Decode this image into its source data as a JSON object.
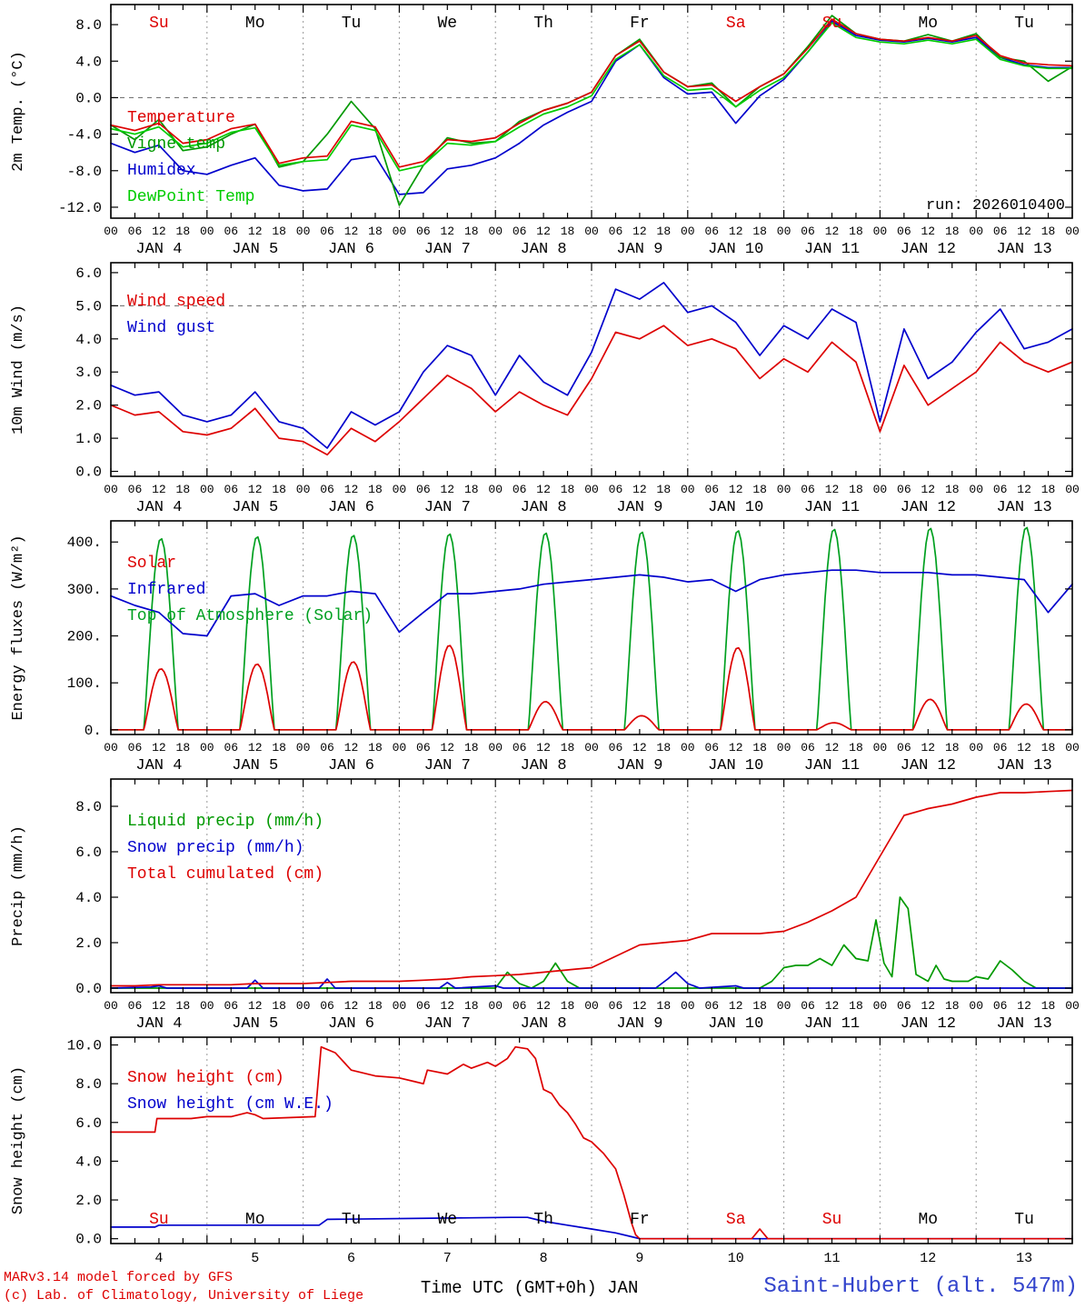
{
  "meta": {
    "credit1": "MARv3.14 model forced by GFS",
    "credit2": "(c) Lab. of Climatology, University of Liege",
    "xlabel": "Time UTC (GMT+0h) JAN",
    "station": "Saint-Hubert (alt. 547m)",
    "run_label": "run: 2026010400"
  },
  "colors": {
    "red": "#dd0000",
    "blue": "#0000cc",
    "green_dark": "#009900",
    "green_bright": "#00cc00",
    "toa_green": "#00a020",
    "grid": "#999999",
    "frame": "#000000",
    "weekend": "#dd0000",
    "station_blue": "#3344cc"
  },
  "x_axis": {
    "span_hours": 240,
    "tick_step_hours": 6,
    "tick_label_cycle": [
      "00",
      "06",
      "12",
      "18"
    ],
    "day_labels": [
      "JAN 4",
      "JAN 5",
      "JAN 6",
      "JAN 7",
      "JAN 8",
      "JAN 9",
      "JAN 10",
      "JAN 11",
      "JAN 12",
      "JAN 13"
    ],
    "day_names": [
      "Su",
      "Mo",
      "Tu",
      "We",
      "Th",
      "Fr",
      "Sa",
      "Su",
      "Mo",
      "Tu"
    ],
    "day_numbers": [
      "4",
      "5",
      "6",
      "7",
      "8",
      "9",
      "10",
      "11",
      "12",
      "13"
    ]
  },
  "chart_data": [
    {
      "type": "line",
      "ylabel": "2m Temp. (°C)",
      "ylim": [
        -13.2,
        10.2
      ],
      "yticks": [
        -12,
        -8,
        -4,
        0,
        4,
        8
      ],
      "ytick_labels": [
        "-12.0",
        "-8.0",
        "-4.0",
        "0.0",
        "4.0",
        "8.0"
      ],
      "hline": 0,
      "annotation": "run: 2026010400",
      "x_step_h": 6,
      "legend": [
        {
          "label": "Temperature",
          "color": "#dd0000"
        },
        {
          "label": "Vigne temp",
          "color": "#009900"
        },
        {
          "label": "Humidex",
          "color": "#0000cc"
        },
        {
          "label": "DewPoint Temp",
          "color": "#00cc00"
        }
      ],
      "series": [
        {
          "name": "Humidex",
          "color": "#0000cc",
          "values": [
            -5.0,
            -6.0,
            -5.2,
            -8.0,
            -8.4,
            -7.4,
            -6.6,
            -9.6,
            -10.2,
            -10.0,
            -6.8,
            -6.4,
            -10.6,
            -10.4,
            -7.8,
            -7.4,
            -6.6,
            -5.0,
            -3.0,
            -1.6,
            -0.4,
            4.0,
            5.8,
            2.2,
            0.4,
            0.6,
            -2.8,
            0.2,
            2.0,
            5.0,
            8.4,
            6.8,
            6.3,
            6.1,
            6.5,
            6.1,
            6.6,
            4.4,
            3.6,
            3.3,
            3.3
          ]
        },
        {
          "name": "Vigne temp",
          "color": "#009900",
          "values": [
            -3.0,
            -4.6,
            -2.4,
            -5.8,
            -5.4,
            -4.0,
            -2.9,
            -7.6,
            -7.0,
            -4.0,
            -0.4,
            -3.4,
            -11.8,
            -7.4,
            -4.4,
            -5.0,
            -4.8,
            -2.6,
            -1.4,
            -0.6,
            0.6,
            4.6,
            6.4,
            2.8,
            1.2,
            1.6,
            -1.0,
            1.2,
            2.6,
            5.6,
            9.0,
            7.0,
            6.4,
            6.2,
            6.9,
            6.2,
            7.0,
            4.4,
            4.0,
            1.8,
            3.4
          ]
        },
        {
          "name": "DewPoint Temp",
          "color": "#00cc00",
          "values": [
            -3.4,
            -4.0,
            -3.2,
            -5.4,
            -5.0,
            -3.8,
            -3.3,
            -7.4,
            -7.0,
            -6.8,
            -3.0,
            -3.6,
            -8.0,
            -7.4,
            -5.0,
            -5.2,
            -4.8,
            -3.2,
            -1.8,
            -1.0,
            0.2,
            4.2,
            5.8,
            2.4,
            0.8,
            1.0,
            -1.0,
            0.8,
            2.2,
            5.0,
            8.2,
            6.6,
            6.1,
            5.9,
            6.3,
            5.9,
            6.4,
            4.2,
            3.5,
            3.2,
            3.2
          ]
        },
        {
          "name": "Temperature",
          "color": "#dd0000",
          "values": [
            -3.0,
            -3.6,
            -2.8,
            -5.0,
            -4.6,
            -3.4,
            -2.9,
            -7.2,
            -6.6,
            -6.4,
            -2.6,
            -3.2,
            -7.6,
            -7.0,
            -4.6,
            -4.8,
            -4.4,
            -2.8,
            -1.4,
            -0.6,
            0.6,
            4.6,
            6.2,
            2.8,
            1.2,
            1.4,
            -0.4,
            1.2,
            2.6,
            5.4,
            8.6,
            7.0,
            6.4,
            6.2,
            6.6,
            6.2,
            6.8,
            4.6,
            3.8,
            3.6,
            3.5
          ]
        }
      ]
    },
    {
      "type": "line",
      "ylabel": "10m Wind (m/s)",
      "ylim": [
        -0.15,
        6.3
      ],
      "yticks": [
        0,
        1,
        2,
        3,
        4,
        5,
        6
      ],
      "ytick_labels": [
        "0.0",
        "1.0",
        "2.0",
        "3.0",
        "4.0",
        "5.0",
        "6.0"
      ],
      "hline": 5,
      "x_step_h": 6,
      "legend": [
        {
          "label": "Wind speed",
          "color": "#dd0000"
        },
        {
          "label": "Wind gust",
          "color": "#0000cc"
        }
      ],
      "series": [
        {
          "name": "Wind gust",
          "color": "#0000cc",
          "values": [
            2.6,
            2.3,
            2.4,
            1.7,
            1.5,
            1.7,
            2.4,
            1.5,
            1.3,
            0.7,
            1.8,
            1.4,
            1.8,
            3.0,
            3.8,
            3.5,
            2.3,
            3.5,
            2.7,
            2.3,
            3.6,
            5.5,
            5.2,
            5.7,
            4.8,
            5.0,
            4.5,
            3.5,
            4.4,
            4.0,
            4.9,
            4.5,
            1.5,
            4.3,
            2.8,
            3.3,
            4.2,
            4.9,
            3.7,
            3.9,
            4.3
          ]
        },
        {
          "name": "Wind speed",
          "color": "#dd0000",
          "values": [
            2.0,
            1.7,
            1.8,
            1.2,
            1.1,
            1.3,
            1.9,
            1.0,
            0.9,
            0.5,
            1.3,
            0.9,
            1.5,
            2.2,
            2.9,
            2.5,
            1.8,
            2.4,
            2.0,
            1.7,
            2.8,
            4.2,
            4.0,
            4.4,
            3.8,
            4.0,
            3.7,
            2.8,
            3.4,
            3.0,
            3.9,
            3.3,
            1.2,
            3.2,
            2.0,
            2.5,
            3.0,
            3.9,
            3.3,
            3.0,
            3.3
          ]
        }
      ]
    },
    {
      "type": "line",
      "ylabel": "Energy fluxes (W/m²)",
      "ylim": [
        -10,
        445
      ],
      "yticks": [
        0,
        100,
        200,
        300,
        400
      ],
      "ytick_labels": [
        "0.",
        "100.",
        "200.",
        "300.",
        "400."
      ],
      "x_step_h": 6,
      "legend": [
        {
          "label": "Solar",
          "color": "#dd0000"
        },
        {
          "label": "Infrared",
          "color": "#0000cc"
        },
        {
          "label": "Top of Atmosphere (Solar)",
          "color": "#00a020"
        }
      ],
      "series": [
        {
          "name": "Top of Atmosphere (Solar)",
          "color": "#00a020",
          "daily_peaks": [
            408,
            412,
            415,
            418,
            420,
            422,
            425,
            428,
            430,
            432
          ]
        },
        {
          "name": "Infrared",
          "color": "#0000cc",
          "values": [
            285,
            265,
            250,
            205,
            200,
            285,
            290,
            265,
            285,
            285,
            295,
            290,
            208,
            250,
            290,
            290,
            295,
            300,
            310,
            315,
            320,
            325,
            330,
            325,
            315,
            320,
            295,
            320,
            330,
            335,
            340,
            340,
            335,
            335,
            335,
            330,
            330,
            325,
            320,
            250,
            310
          ]
        },
        {
          "name": "Solar",
          "color": "#dd0000",
          "daily_peaks": [
            130,
            140,
            145,
            180,
            60,
            30,
            175,
            15,
            65,
            55
          ]
        }
      ]
    },
    {
      "type": "line",
      "ylabel": "Precip (mm/h)",
      "ylim": [
        -0.2,
        9.2
      ],
      "yticks": [
        0,
        2,
        4,
        6,
        8
      ],
      "ytick_labels": [
        "0.0",
        "2.0",
        "4.0",
        "6.0",
        "8.0"
      ],
      "x_step_h": 6,
      "legend": [
        {
          "label": "Liquid precip (mm/h)",
          "color": "#009900"
        },
        {
          "label": "Snow precip (mm/h)",
          "color": "#0000cc"
        },
        {
          "label": "Total cumulated (cm)",
          "color": "#dd0000"
        }
      ],
      "series": [
        {
          "name": "Liquid precip (mm/h)",
          "color": "#009900",
          "points": [
            [
              0,
              0
            ],
            [
              96,
              0
            ],
            [
              99,
              0.7
            ],
            [
              102,
              0.2
            ],
            [
              105,
              0
            ],
            [
              108,
              0.3
            ],
            [
              111,
              1.1
            ],
            [
              114,
              0.3
            ],
            [
              117,
              0
            ],
            [
              162,
              0
            ],
            [
              165,
              0.3
            ],
            [
              168,
              0.9
            ],
            [
              171,
              1.0
            ],
            [
              174,
              1.0
            ],
            [
              177,
              1.3
            ],
            [
              180,
              1.0
            ],
            [
              183,
              1.9
            ],
            [
              186,
              1.3
            ],
            [
              189,
              1.2
            ],
            [
              191,
              3.0
            ],
            [
              193,
              1.1
            ],
            [
              195,
              0.5
            ],
            [
              197,
              4.0
            ],
            [
              199,
              3.5
            ],
            [
              201,
              0.6
            ],
            [
              204,
              0.3
            ],
            [
              206,
              1.0
            ],
            [
              208,
              0.4
            ],
            [
              210,
              0.3
            ],
            [
              214,
              0.3
            ],
            [
              216,
              0.5
            ],
            [
              219,
              0.4
            ],
            [
              222,
              1.2
            ],
            [
              225,
              0.8
            ],
            [
              228,
              0.3
            ],
            [
              231,
              0
            ],
            [
              240,
              0
            ]
          ]
        },
        {
          "name": "Snow precip (mm/h)",
          "color": "#0000cc",
          "points": [
            [
              0,
              0
            ],
            [
              10,
              0.05
            ],
            [
              12,
              0.1
            ],
            [
              14,
              0
            ],
            [
              34,
              0
            ],
            [
              36,
              0.35
            ],
            [
              38,
              0
            ],
            [
              52,
              0
            ],
            [
              54,
              0.4
            ],
            [
              56,
              0
            ],
            [
              82,
              0
            ],
            [
              84,
              0.25
            ],
            [
              86,
              0
            ],
            [
              96,
              0.1
            ],
            [
              98,
              0
            ],
            [
              136,
              0
            ],
            [
              139,
              0.4
            ],
            [
              141,
              0.7
            ],
            [
              144,
              0.2
            ],
            [
              147,
              0
            ],
            [
              156,
              0.1
            ],
            [
              158,
              0
            ],
            [
              240,
              0
            ]
          ]
        },
        {
          "name": "Total cumulated (cm)",
          "color": "#dd0000",
          "values": [
            0.1,
            0.1,
            0.15,
            0.15,
            0.15,
            0.15,
            0.2,
            0.2,
            0.2,
            0.25,
            0.3,
            0.3,
            0.3,
            0.35,
            0.4,
            0.5,
            0.55,
            0.6,
            0.7,
            0.8,
            0.9,
            1.4,
            1.9,
            2.0,
            2.1,
            2.4,
            2.4,
            2.4,
            2.5,
            2.9,
            3.4,
            4.0,
            5.8,
            7.6,
            7.9,
            8.1,
            8.4,
            8.6,
            8.6,
            8.65,
            8.7
          ]
        }
      ]
    },
    {
      "type": "line",
      "ylabel": "Snow height (cm)",
      "ylim": [
        -0.25,
        10.4
      ],
      "yticks": [
        0,
        2,
        4,
        6,
        8,
        10
      ],
      "ytick_labels": [
        "0.0",
        "2.0",
        "4.0",
        "6.0",
        "8.0",
        "10.0"
      ],
      "legend": [
        {
          "label": "Snow height (cm)",
          "color": "#dd0000"
        },
        {
          "label": "Snow height (cm W.E.)",
          "color": "#0000cc"
        }
      ],
      "series": [
        {
          "name": "Snow height (cm W.E.)",
          "color": "#0000cc",
          "points": [
            [
              0,
              0.6
            ],
            [
              11,
              0.6
            ],
            [
              12,
              0.7
            ],
            [
              52,
              0.7
            ],
            [
              54,
              1.0
            ],
            [
              100,
              1.1
            ],
            [
              104,
              1.1
            ],
            [
              108,
              0.9
            ],
            [
              114,
              0.7
            ],
            [
              120,
              0.5
            ],
            [
              126,
              0.3
            ],
            [
              130,
              0.1
            ],
            [
              132,
              0
            ],
            [
              240,
              0
            ]
          ]
        },
        {
          "name": "Snow height (cm)",
          "color": "#dd0000",
          "points": [
            [
              0,
              5.5
            ],
            [
              11,
              5.5
            ],
            [
              11.5,
              6.2
            ],
            [
              20,
              6.2
            ],
            [
              24,
              6.3
            ],
            [
              30,
              6.3
            ],
            [
              34,
              6.5
            ],
            [
              36,
              6.4
            ],
            [
              38,
              6.2
            ],
            [
              51,
              6.3
            ],
            [
              52.5,
              9.9
            ],
            [
              56,
              9.6
            ],
            [
              60,
              8.7
            ],
            [
              66,
              8.4
            ],
            [
              72,
              8.3
            ],
            [
              76,
              8.1
            ],
            [
              78,
              8.0
            ],
            [
              79,
              8.7
            ],
            [
              84,
              8.5
            ],
            [
              88,
              9.0
            ],
            [
              90,
              8.8
            ],
            [
              94,
              9.1
            ],
            [
              96,
              8.9
            ],
            [
              99,
              9.3
            ],
            [
              101,
              9.9
            ],
            [
              104,
              9.8
            ],
            [
              106,
              9.3
            ],
            [
              108,
              7.7
            ],
            [
              110,
              7.5
            ],
            [
              112,
              6.9
            ],
            [
              114,
              6.5
            ],
            [
              116,
              5.9
            ],
            [
              118,
              5.2
            ],
            [
              120,
              5.0
            ],
            [
              123,
              4.4
            ],
            [
              126,
              3.6
            ],
            [
              128,
              2.3
            ],
            [
              130,
              0.8
            ],
            [
              131,
              0.2
            ],
            [
              132,
              0
            ],
            [
              160,
              0
            ],
            [
              162,
              0.5
            ],
            [
              164,
              0
            ],
            [
              240,
              0
            ]
          ]
        }
      ]
    }
  ]
}
